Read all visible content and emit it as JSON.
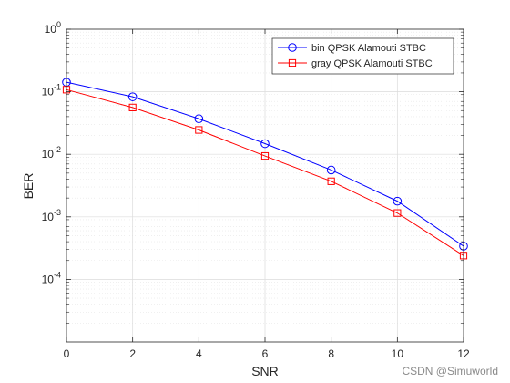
{
  "chart_data": {
    "type": "line",
    "title": "",
    "xlabel": "SNR",
    "ylabel": "BER",
    "x": [
      0,
      2,
      4,
      6,
      8,
      10,
      12
    ],
    "xlim": [
      0,
      12
    ],
    "ylim": [
      1e-05,
      1
    ],
    "yscale": "log",
    "xticks": [
      "0",
      "2",
      "4",
      "6",
      "8",
      "10",
      "12"
    ],
    "yticks": [
      {
        "base": "10",
        "exp": "0",
        "value": 1
      },
      {
        "base": "10",
        "exp": "-1",
        "value": 0.1
      },
      {
        "base": "10",
        "exp": "-2",
        "value": 0.01
      },
      {
        "base": "10",
        "exp": "-3",
        "value": 0.001
      },
      {
        "base": "10",
        "exp": "-4",
        "value": 0.0001
      }
    ],
    "grid": true,
    "minor_grid": true,
    "legend_position": "top-right",
    "series": [
      {
        "name": "bin QPSK Alamouti STBC",
        "marker": "circle",
        "color": "#0000ff",
        "values": [
          0.142,
          0.083,
          0.037,
          0.0148,
          0.0056,
          0.00178,
          0.00034
        ]
      },
      {
        "name": "gray QPSK Alamouti STBC",
        "marker": "square",
        "color": "#ff0000",
        "values": [
          0.108,
          0.056,
          0.0245,
          0.0094,
          0.0037,
          0.00115,
          0.00024
        ]
      }
    ]
  },
  "watermark": "CSDN @Simuworld"
}
